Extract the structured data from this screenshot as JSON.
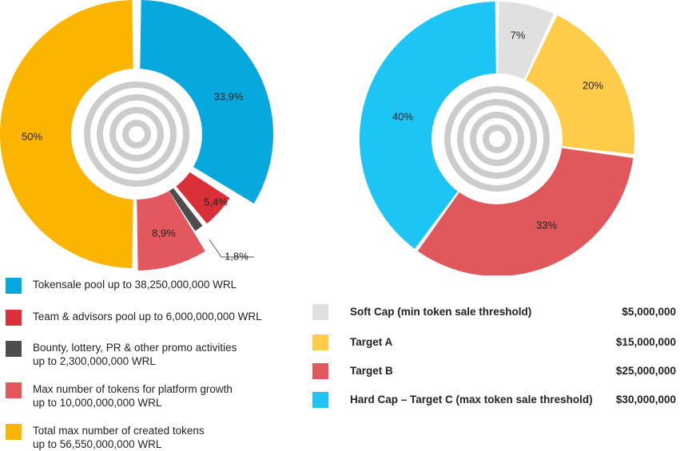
{
  "chart_data": [
    {
      "type": "pie",
      "title": "",
      "slices": [
        {
          "label": "Tokensale pool up to 38,250,000,000 WRL",
          "value": 33.9,
          "value_label": "33,9%",
          "color": "#07a8de"
        },
        {
          "label": "Team & advisors pool up to 6,000,000,000 WRL",
          "value": 5.4,
          "value_label": "5,4%",
          "color": "#d9303a"
        },
        {
          "label": "Bounty, lottery, PR & other promo activities up to 2,300,000,000 WRL",
          "value": 1.8,
          "value_label": "1,8%",
          "color": "#4d4d4d"
        },
        {
          "label": "Max number of tokens for platform growth up to 10,000,000,000 WRL",
          "value": 8.9,
          "value_label": "8,9%",
          "color": "#e2585e"
        },
        {
          "label": "Total max number of created tokens up to 56,550,000,000 WRL",
          "value": 50,
          "value_label": "50%",
          "color": "#fbb500"
        }
      ],
      "legend": [
        {
          "color": "#07a8de",
          "lines": [
            "Tokensale pool up to 38,250,000,000 WRL"
          ]
        },
        {
          "color": "#d9303a",
          "lines": [
            "Team & advisors pool up to 6,000,000,000 WRL"
          ]
        },
        {
          "color": "#4d4d4d",
          "lines": [
            "Bounty, lottery, PR & other promo activities",
            "up to 2,300,000,000 WRL"
          ]
        },
        {
          "color": "#e2585e",
          "lines": [
            "Max number of tokens for platform growth",
            "up to 10,000,000,000 WRL"
          ]
        },
        {
          "color": "#fbb500",
          "lines": [
            "Total max number of created tokens",
            "up to 56,550,000,000 WRL"
          ]
        }
      ],
      "legend_placement": "bottom"
    },
    {
      "type": "pie",
      "title": "",
      "slices": [
        {
          "label": "Soft Cap (min token sale threshold)",
          "value": 7,
          "value_label": "7%",
          "color": "#e0e0e0",
          "amount": "$5,000,000"
        },
        {
          "label": "Target A",
          "value": 20,
          "value_label": "20%",
          "color": "#ffcc4a",
          "amount": "$15,000,000"
        },
        {
          "label": "Target B",
          "value": 33,
          "value_label": "33%",
          "color": "#e0585b",
          "amount": "$25,000,000"
        },
        {
          "label": "Hard Cap  –  Target C (max token sale threshold)",
          "value": 40,
          "value_label": "40%",
          "color": "#1dc5f4",
          "amount": "$30,000,000"
        }
      ],
      "legend_placement": "bottom"
    }
  ]
}
